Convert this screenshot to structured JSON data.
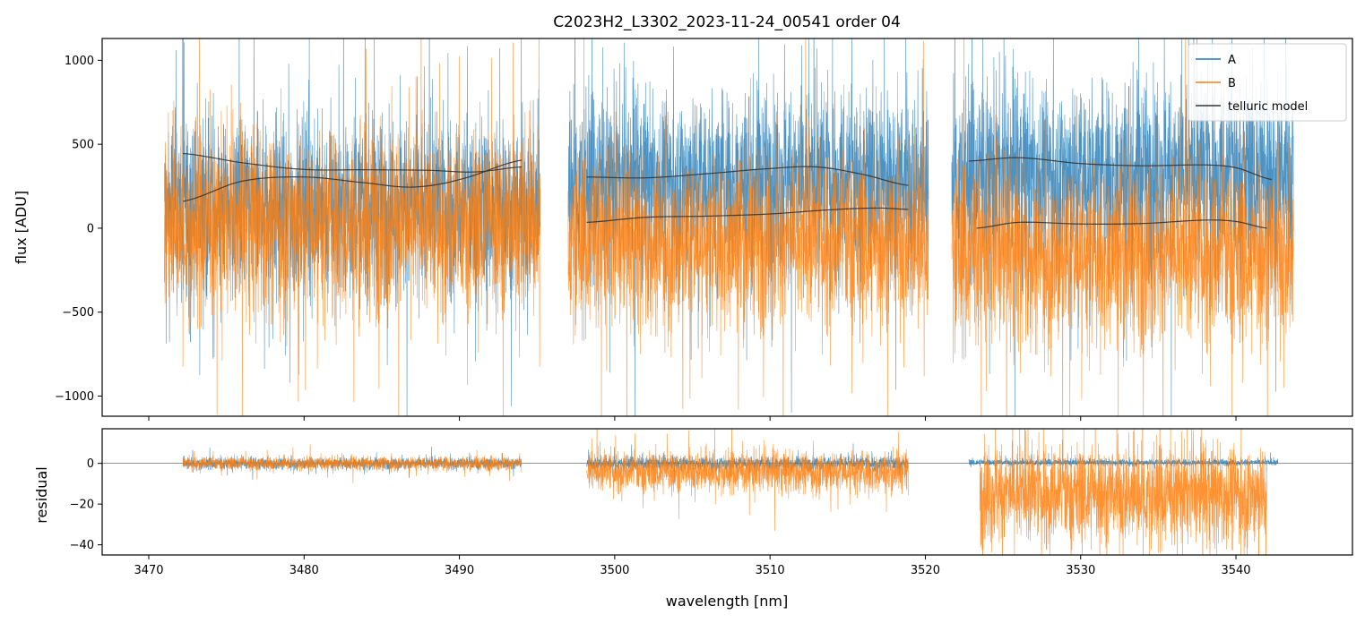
{
  "chart_data": {
    "type": "line",
    "title": "C2023H2_L3302_2023-11-24_00541  order 04",
    "xlabel": "wavelength [nm]",
    "xlim": [
      3467,
      3547.5
    ],
    "xticks": [
      "3470",
      "3480",
      "3490",
      "3500",
      "3510",
      "3520",
      "3530",
      "3540"
    ],
    "xtick_values": [
      3470,
      3480,
      3490,
      3500,
      3510,
      3520,
      3530,
      3540
    ],
    "colors": {
      "A": "#1f77b4",
      "B": "#ff7f0e",
      "telluric": "#333333"
    },
    "legend": {
      "location": "top-right",
      "entries": [
        "A",
        "B",
        "telluric model"
      ]
    },
    "panels": [
      {
        "id": "flux",
        "ylabel": "flux [ADU]",
        "ylim": [
          -1120,
          1130
        ],
        "yticks": [
          "−1000",
          "−500",
          "0",
          "500",
          "1000"
        ],
        "ytick_values": [
          -1000,
          -500,
          0,
          500,
          1000
        ],
        "series": [
          {
            "name": "A",
            "segments": [
              {
                "x_range": [
                  3471.0,
                  3495.2
                ],
                "center": 130,
                "spread": 460
              },
              {
                "x_range": [
                  3497.0,
                  3520.2
                ],
                "center": 280,
                "spread": 480
              },
              {
                "x_range": [
                  3521.7,
                  3543.7
                ],
                "center": 320,
                "spread": 500
              }
            ]
          },
          {
            "name": "B",
            "segments": [
              {
                "x_range": [
                  3471.0,
                  3495.2
                ],
                "center": 30,
                "spread": 480
              },
              {
                "x_range": [
                  3497.0,
                  3520.2
                ],
                "center": -80,
                "spread": 450
              },
              {
                "x_range": [
                  3521.7,
                  3543.7
                ],
                "center": -150,
                "spread": 480
              }
            ]
          },
          {
            "name": "telluric model",
            "curves": [
              {
                "x": [
                  3472.2,
                  3476,
                  3480,
                  3484,
                  3488,
                  3491,
                  3494.0
                ],
                "y": [
                  445,
                  390,
                  350,
                  348,
                  345,
                  335,
                  365
                ]
              },
              {
                "x": [
                  3472.2,
                  3476,
                  3480,
                  3484,
                  3487,
                  3490,
                  3494.0
                ],
                "y": [
                  160,
                  280,
                  305,
                  270,
                  245,
                  290,
                  405
                ]
              },
              {
                "x": [
                  3498.2,
                  3502,
                  3506,
                  3510,
                  3513,
                  3516,
                  3518.9
                ],
                "y": [
                  305,
                  300,
                  325,
                  355,
                  365,
                  320,
                  255
                ]
              },
              {
                "x": [
                  3498.2,
                  3502,
                  3506,
                  3510,
                  3514,
                  3517,
                  3518.9
                ],
                "y": [
                  35,
                  65,
                  72,
                  85,
                  110,
                  120,
                  112
                ]
              },
              {
                "x": [
                  3522.8,
                  3526,
                  3530,
                  3534,
                  3538,
                  3540,
                  3542.3
                ],
                "y": [
                  400,
                  420,
                  385,
                  372,
                  377,
                  360,
                  290
                ]
              },
              {
                "x": [
                  3523.3,
                  3526,
                  3530,
                  3534,
                  3538,
                  3540,
                  3542.0
                ],
                "y": [
                  0,
                  35,
                  25,
                  28,
                  48,
                  40,
                  0
                ]
              }
            ]
          }
        ]
      },
      {
        "id": "residual",
        "ylabel": "residual",
        "ylim": [
          -45,
          17
        ],
        "yticks": [
          "−40",
          "−20",
          "0"
        ],
        "ytick_values": [
          -40,
          -20,
          0
        ],
        "series": [
          {
            "name": "A",
            "segments": [
              {
                "x_range": [
                  3472.2,
                  3494.0
                ],
                "center": 0,
                "spread": 2.5
              },
              {
                "x_range": [
                  3498.2,
                  3518.9
                ],
                "center": 0,
                "spread": 3
              },
              {
                "x_range": [
                  3522.8,
                  3542.7
                ],
                "center": 0.5,
                "spread": 1.5
              }
            ]
          },
          {
            "name": "B",
            "segments": [
              {
                "x_range": [
                  3472.2,
                  3494.0
                ],
                "center": 0,
                "spread": 3
              },
              {
                "x_range": [
                  3498.2,
                  3518.9
                ],
                "center": -4,
                "spread": 9
              },
              {
                "x_range": [
                  3523.5,
                  3542.0
                ],
                "center": -15,
                "spread": 22
              }
            ]
          }
        ]
      }
    ]
  }
}
